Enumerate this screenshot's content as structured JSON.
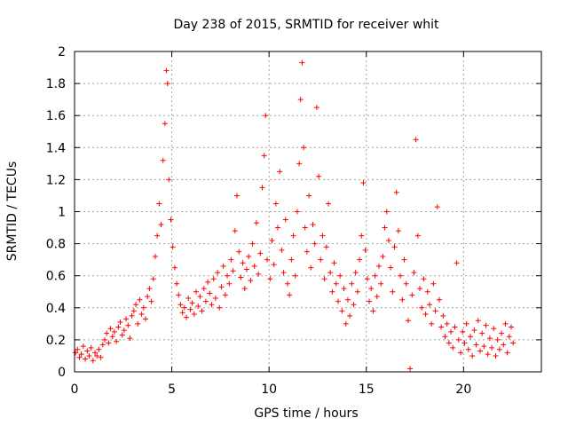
{
  "chart_data": {
    "type": "scatter",
    "title": "Day 238 of 2015, SRMTID for receiver whit",
    "xlabel": "GPS time / hours",
    "ylabel": "SRMTID / TECUs",
    "xlim": [
      0,
      24
    ],
    "ylim": [
      0,
      2
    ],
    "x_ticks": [
      {
        "value": 0,
        "label": "0"
      },
      {
        "value": 5,
        "label": "5"
      },
      {
        "value": 10,
        "label": "10"
      },
      {
        "value": 15,
        "label": "15"
      },
      {
        "value": 20,
        "label": "20"
      }
    ],
    "y_ticks": [
      {
        "value": 0,
        "label": "0"
      },
      {
        "value": 0.2,
        "label": "0.2"
      },
      {
        "value": 0.4,
        "label": "0.4"
      },
      {
        "value": 0.6,
        "label": "0.6"
      },
      {
        "value": 0.8,
        "label": "0.8"
      },
      {
        "value": 1.0,
        "label": "1"
      },
      {
        "value": 1.2,
        "label": "1.2"
      },
      {
        "value": 1.4,
        "label": "1.4"
      },
      {
        "value": 1.6,
        "label": "1.6"
      },
      {
        "value": 1.8,
        "label": "1.8"
      },
      {
        "value": 2.0,
        "label": "2"
      }
    ],
    "grid": true,
    "marker": "+",
    "color": "#ff0000",
    "series": [
      {
        "name": "SRMTID",
        "points": [
          [
            0.05,
            0.12
          ],
          [
            0.15,
            0.14
          ],
          [
            0.25,
            0.09
          ],
          [
            0.35,
            0.11
          ],
          [
            0.45,
            0.16
          ],
          [
            0.55,
            0.08
          ],
          [
            0.65,
            0.13
          ],
          [
            0.75,
            0.1
          ],
          [
            0.85,
            0.15
          ],
          [
            0.95,
            0.07
          ],
          [
            1.05,
            0.12
          ],
          [
            1.15,
            0.1
          ],
          [
            1.25,
            0.14
          ],
          [
            1.35,
            0.09
          ],
          [
            1.45,
            0.17
          ],
          [
            1.55,
            0.2
          ],
          [
            1.65,
            0.24
          ],
          [
            1.75,
            0.18
          ],
          [
            1.85,
            0.27
          ],
          [
            1.95,
            0.22
          ],
          [
            2.05,
            0.25
          ],
          [
            2.15,
            0.19
          ],
          [
            2.25,
            0.28
          ],
          [
            2.35,
            0.31
          ],
          [
            2.45,
            0.23
          ],
          [
            2.55,
            0.26
          ],
          [
            2.65,
            0.33
          ],
          [
            2.75,
            0.29
          ],
          [
            2.85,
            0.21
          ],
          [
            2.95,
            0.35
          ],
          [
            3.05,
            0.38
          ],
          [
            3.15,
            0.42
          ],
          [
            3.25,
            0.3
          ],
          [
            3.35,
            0.45
          ],
          [
            3.45,
            0.36
          ],
          [
            3.55,
            0.4
          ],
          [
            3.65,
            0.33
          ],
          [
            3.75,
            0.47
          ],
          [
            3.85,
            0.52
          ],
          [
            3.95,
            0.44
          ],
          [
            4.05,
            0.58
          ],
          [
            4.15,
            0.72
          ],
          [
            4.25,
            0.85
          ],
          [
            4.35,
            1.05
          ],
          [
            4.45,
            0.92
          ],
          [
            4.55,
            1.32
          ],
          [
            4.65,
            1.55
          ],
          [
            4.72,
            1.88
          ],
          [
            4.78,
            1.8
          ],
          [
            4.85,
            1.2
          ],
          [
            4.95,
            0.95
          ],
          [
            5.05,
            0.78
          ],
          [
            5.15,
            0.65
          ],
          [
            5.25,
            0.55
          ],
          [
            5.35,
            0.48
          ],
          [
            5.45,
            0.42
          ],
          [
            5.55,
            0.37
          ],
          [
            5.65,
            0.4
          ],
          [
            5.75,
            0.34
          ],
          [
            5.85,
            0.46
          ],
          [
            5.95,
            0.39
          ],
          [
            6.05,
            0.43
          ],
          [
            6.15,
            0.36
          ],
          [
            6.25,
            0.5
          ],
          [
            6.35,
            0.41
          ],
          [
            6.45,
            0.47
          ],
          [
            6.55,
            0.38
          ],
          [
            6.65,
            0.52
          ],
          [
            6.75,
            0.44
          ],
          [
            6.85,
            0.56
          ],
          [
            6.95,
            0.49
          ],
          [
            7.05,
            0.42
          ],
          [
            7.15,
            0.58
          ],
          [
            7.25,
            0.46
          ],
          [
            7.35,
            0.62
          ],
          [
            7.45,
            0.4
          ],
          [
            7.55,
            0.53
          ],
          [
            7.65,
            0.66
          ],
          [
            7.75,
            0.48
          ],
          [
            7.85,
            0.6
          ],
          [
            7.95,
            0.55
          ],
          [
            8.05,
            0.7
          ],
          [
            8.15,
            0.63
          ],
          [
            8.25,
            0.88
          ],
          [
            8.35,
            1.1
          ],
          [
            8.45,
            0.75
          ],
          [
            8.55,
            0.59
          ],
          [
            8.65,
            0.68
          ],
          [
            8.75,
            0.52
          ],
          [
            8.85,
            0.64
          ],
          [
            8.95,
            0.72
          ],
          [
            9.05,
            0.57
          ],
          [
            9.15,
            0.8
          ],
          [
            9.25,
            0.66
          ],
          [
            9.35,
            0.93
          ],
          [
            9.45,
            0.61
          ],
          [
            9.55,
            0.74
          ],
          [
            9.65,
            1.15
          ],
          [
            9.75,
            1.35
          ],
          [
            9.82,
            1.6
          ],
          [
            9.9,
            0.7
          ],
          [
            10.05,
            0.58
          ],
          [
            10.15,
            0.82
          ],
          [
            10.25,
            0.67
          ],
          [
            10.35,
            1.05
          ],
          [
            10.45,
            0.9
          ],
          [
            10.55,
            1.25
          ],
          [
            10.65,
            0.76
          ],
          [
            10.75,
            0.62
          ],
          [
            10.85,
            0.95
          ],
          [
            10.95,
            0.55
          ],
          [
            11.05,
            0.48
          ],
          [
            11.15,
            0.7
          ],
          [
            11.25,
            0.85
          ],
          [
            11.35,
            0.6
          ],
          [
            11.45,
            1.0
          ],
          [
            11.55,
            1.3
          ],
          [
            11.62,
            1.7
          ],
          [
            11.7,
            1.93
          ],
          [
            11.78,
            1.4
          ],
          [
            11.85,
            0.9
          ],
          [
            11.95,
            0.75
          ],
          [
            12.05,
            1.1
          ],
          [
            12.15,
            0.65
          ],
          [
            12.25,
            0.92
          ],
          [
            12.35,
            0.8
          ],
          [
            12.45,
            1.65
          ],
          [
            12.55,
            1.22
          ],
          [
            12.65,
            0.7
          ],
          [
            12.75,
            0.85
          ],
          [
            12.85,
            0.58
          ],
          [
            12.95,
            0.78
          ],
          [
            13.05,
            1.05
          ],
          [
            13.15,
            0.62
          ],
          [
            13.25,
            0.5
          ],
          [
            13.35,
            0.68
          ],
          [
            13.45,
            0.55
          ],
          [
            13.55,
            0.44
          ],
          [
            13.65,
            0.6
          ],
          [
            13.75,
            0.38
          ],
          [
            13.85,
            0.52
          ],
          [
            13.95,
            0.3
          ],
          [
            14.05,
            0.45
          ],
          [
            14.15,
            0.35
          ],
          [
            14.25,
            0.55
          ],
          [
            14.35,
            0.42
          ],
          [
            14.45,
            0.62
          ],
          [
            14.55,
            0.5
          ],
          [
            14.65,
            0.7
          ],
          [
            14.75,
            0.85
          ],
          [
            14.85,
            1.18
          ],
          [
            14.95,
            0.76
          ],
          [
            15.05,
            0.58
          ],
          [
            15.15,
            0.44
          ],
          [
            15.25,
            0.52
          ],
          [
            15.35,
            0.38
          ],
          [
            15.45,
            0.6
          ],
          [
            15.55,
            0.47
          ],
          [
            15.65,
            0.66
          ],
          [
            15.75,
            0.55
          ],
          [
            15.85,
            0.72
          ],
          [
            15.95,
            0.9
          ],
          [
            16.05,
            1.0
          ],
          [
            16.15,
            0.82
          ],
          [
            16.25,
            0.65
          ],
          [
            16.35,
            0.5
          ],
          [
            16.45,
            0.78
          ],
          [
            16.55,
            1.12
          ],
          [
            16.65,
            0.88
          ],
          [
            16.75,
            0.6
          ],
          [
            16.85,
            0.45
          ],
          [
            16.95,
            0.7
          ],
          [
            17.05,
            0.55
          ],
          [
            17.15,
            0.32
          ],
          [
            17.25,
            0.02
          ],
          [
            17.35,
            0.48
          ],
          [
            17.45,
            0.62
          ],
          [
            17.55,
            1.45
          ],
          [
            17.65,
            0.85
          ],
          [
            17.75,
            0.52
          ],
          [
            17.85,
            0.4
          ],
          [
            17.95,
            0.58
          ],
          [
            18.05,
            0.36
          ],
          [
            18.15,
            0.5
          ],
          [
            18.25,
            0.42
          ],
          [
            18.35,
            0.3
          ],
          [
            18.45,
            0.55
          ],
          [
            18.55,
            0.38
          ],
          [
            18.65,
            1.03
          ],
          [
            18.75,
            0.45
          ],
          [
            18.85,
            0.28
          ],
          [
            18.95,
            0.35
          ],
          [
            19.05,
            0.22
          ],
          [
            19.15,
            0.3
          ],
          [
            19.25,
            0.18
          ],
          [
            19.35,
            0.25
          ],
          [
            19.45,
            0.15
          ],
          [
            19.55,
            0.28
          ],
          [
            19.65,
            0.68
          ],
          [
            19.75,
            0.2
          ],
          [
            19.85,
            0.12
          ],
          [
            19.95,
            0.25
          ],
          [
            20.05,
            0.18
          ],
          [
            20.15,
            0.3
          ],
          [
            20.25,
            0.14
          ],
          [
            20.35,
            0.22
          ],
          [
            20.45,
            0.1
          ],
          [
            20.55,
            0.26
          ],
          [
            20.65,
            0.17
          ],
          [
            20.75,
            0.32
          ],
          [
            20.85,
            0.13
          ],
          [
            20.95,
            0.24
          ],
          [
            21.05,
            0.16
          ],
          [
            21.15,
            0.29
          ],
          [
            21.25,
            0.11
          ],
          [
            21.35,
            0.21
          ],
          [
            21.45,
            0.15
          ],
          [
            21.55,
            0.27
          ],
          [
            21.65,
            0.1
          ],
          [
            21.75,
            0.2
          ],
          [
            21.85,
            0.14
          ],
          [
            21.95,
            0.24
          ],
          [
            22.05,
            0.17
          ],
          [
            22.15,
            0.3
          ],
          [
            22.25,
            0.12
          ],
          [
            22.35,
            0.22
          ],
          [
            22.45,
            0.28
          ],
          [
            22.55,
            0.18
          ]
        ]
      }
    ]
  }
}
